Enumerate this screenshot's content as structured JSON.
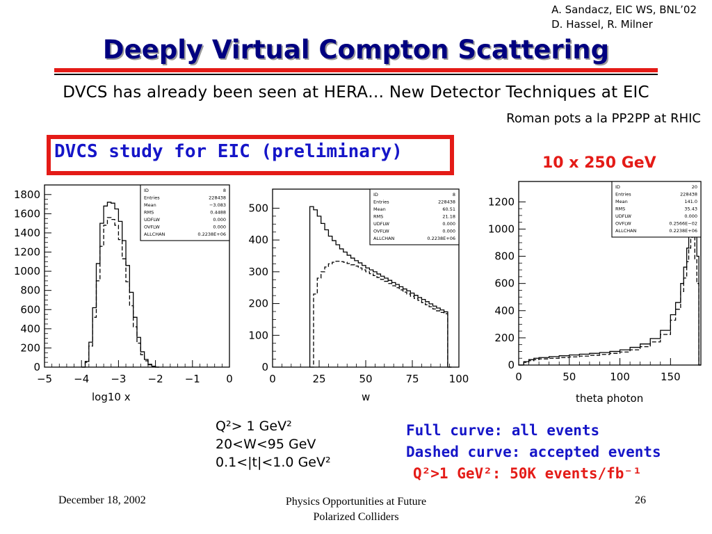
{
  "header": {
    "credit_line1": "A. Sandacz, EIC WS, BNL’02",
    "credit_line2": "D. Hassel, R. Milner",
    "title": "Deeply Virtual Compton Scattering",
    "subtitle": "DVCS has already been seen at HERA… New Detector Techniques at EIC",
    "subnote": "Roman pots a la PP2PP at RHIC"
  },
  "study_box": {
    "text": "DVCS study for EIC (preliminary)"
  },
  "energy_label": "10 x 250 GeV",
  "colors": {
    "title": "#000080",
    "accent_red": "#e41b17",
    "accent_blue": "#1515c8"
  },
  "chart_data": [
    {
      "type": "histogram",
      "xlabel": "log10 x",
      "xlim": [
        -5,
        0
      ],
      "ylim": [
        0,
        1900
      ],
      "xticks": [
        -5,
        -4,
        -3,
        -2,
        -1,
        0
      ],
      "xtick_labels": [
        "−5",
        "−4",
        "−3",
        "−2",
        "−1",
        "0"
      ],
      "yticks": [
        0,
        200,
        400,
        600,
        800,
        1000,
        1200,
        1400,
        1600,
        1800
      ],
      "stats": {
        "labels": [
          "ID",
          "Entries",
          "Mean",
          "RMS",
          "UDFLW",
          "OVFLW",
          "ALLCHAN"
        ],
        "values": [
          "8",
          "228438",
          "−3.083",
          "0.4488",
          "0.000",
          "0.000",
          "0.2238E+06"
        ]
      },
      "x": [
        -4.0,
        -3.9,
        -3.8,
        -3.7,
        -3.6,
        -3.5,
        -3.4,
        -3.3,
        -3.2,
        -3.1,
        -3.0,
        -2.9,
        -2.8,
        -2.7,
        -2.6,
        -2.5,
        -2.4,
        -2.3,
        -2.2,
        -2.1,
        -2.0
      ],
      "series": [
        {
          "style": "solid",
          "values": [
            0,
            60,
            260,
            620,
            1080,
            1500,
            1680,
            1720,
            1710,
            1650,
            1520,
            1320,
            1060,
            780,
            520,
            310,
            160,
            80,
            30,
            10,
            0
          ]
        },
        {
          "style": "dashed",
          "values": [
            0,
            50,
            220,
            520,
            900,
            1260,
            1480,
            1560,
            1540,
            1480,
            1330,
            1130,
            890,
            640,
            420,
            250,
            130,
            65,
            25,
            8,
            0
          ]
        }
      ]
    },
    {
      "type": "histogram",
      "xlabel": "w",
      "xlim": [
        0,
        100
      ],
      "ylim": [
        0,
        560
      ],
      "xticks": [
        0,
        25,
        50,
        75,
        100
      ],
      "xtick_labels": [
        "0",
        "25",
        "50",
        "75",
        "100"
      ],
      "yticks": [
        0,
        100,
        200,
        300,
        400,
        500
      ],
      "stats": {
        "labels": [
          "ID",
          "Entries",
          "Mean",
          "RMS",
          "UDFLW",
          "OVFLW",
          "ALLCHAN"
        ],
        "values": [
          "8",
          "228438",
          "60.51",
          "21.18",
          "0.000",
          "0.000",
          "0.2238E+06"
        ]
      },
      "x": [
        20,
        22,
        24,
        26,
        28,
        30,
        32,
        34,
        36,
        38,
        40,
        42,
        44,
        46,
        48,
        50,
        52,
        54,
        56,
        58,
        60,
        62,
        64,
        66,
        68,
        70,
        72,
        74,
        76,
        78,
        80,
        82,
        84,
        86,
        88,
        90,
        92,
        94
      ],
      "series": [
        {
          "style": "solid",
          "values": [
            505,
            495,
            475,
            452,
            432,
            412,
            398,
            385,
            372,
            362,
            352,
            343,
            335,
            328,
            320,
            312,
            306,
            300,
            293,
            286,
            280,
            273,
            266,
            260,
            253,
            246,
            240,
            233,
            226,
            219,
            213,
            206,
            199,
            192,
            186,
            180,
            174,
            0
          ]
        },
        {
          "style": "dashed",
          "values": [
            0,
            230,
            280,
            300,
            315,
            325,
            330,
            333,
            332,
            330,
            326,
            322,
            318,
            312,
            306,
            300,
            294,
            288,
            282,
            276,
            270,
            263,
            256,
            250,
            243,
            236,
            230,
            223,
            216,
            210,
            203,
            196,
            190,
            183,
            177,
            172,
            168,
            0
          ]
        }
      ]
    },
    {
      "type": "histogram",
      "xlabel": "theta photon",
      "xlim": [
        0,
        180
      ],
      "ylim": [
        0,
        1350
      ],
      "xticks": [
        0,
        50,
        100,
        150
      ],
      "xtick_labels": [
        "0",
        "50",
        "100",
        "150"
      ],
      "yticks": [
        0,
        200,
        400,
        600,
        800,
        1000,
        1200
      ],
      "stats": {
        "labels": [
          "ID",
          "Entries",
          "Mean",
          "RMS",
          "UDFLW",
          "OVFLW",
          "ALLCHAN"
        ],
        "values": [
          "20",
          "228438",
          "141.0",
          "35.43",
          "0.000",
          "0.2566E−02",
          "0.2238E+06"
        ]
      },
      "x": [
        0,
        5,
        10,
        15,
        20,
        30,
        40,
        50,
        60,
        70,
        80,
        90,
        100,
        110,
        120,
        130,
        140,
        150,
        155,
        160,
        163,
        166,
        168,
        170,
        172,
        174,
        176,
        178
      ],
      "series": [
        {
          "style": "solid",
          "values": [
            0,
            25,
            40,
            50,
            55,
            62,
            68,
            74,
            80,
            86,
            92,
            100,
            112,
            130,
            155,
            195,
            255,
            370,
            460,
            600,
            720,
            860,
            980,
            1100,
            1200,
            1000,
            800,
            0
          ]
        },
        {
          "style": "dashed",
          "values": [
            0,
            20,
            32,
            40,
            45,
            50,
            55,
            60,
            66,
            72,
            78,
            86,
            96,
            112,
            135,
            170,
            225,
            330,
            410,
            540,
            640,
            760,
            860,
            940,
            1000,
            780,
            600,
            0
          ]
        }
      ]
    }
  ],
  "cuts": {
    "line1": "Q²> 1 GeV²",
    "line2": "20<W<95 GeV",
    "line3": "0.1<|t|<1.0 GeV²"
  },
  "legend": {
    "full": "Full curve: all events",
    "dashed": "Dashed curve: accepted events",
    "stat": "Q²>1 GeV²: 50K events/fb⁻¹"
  },
  "footer": {
    "date": "December 18, 2002",
    "center_line1": "Physics Opportunities at Future",
    "center_line2": "Polarized Colliders",
    "page": "26"
  }
}
